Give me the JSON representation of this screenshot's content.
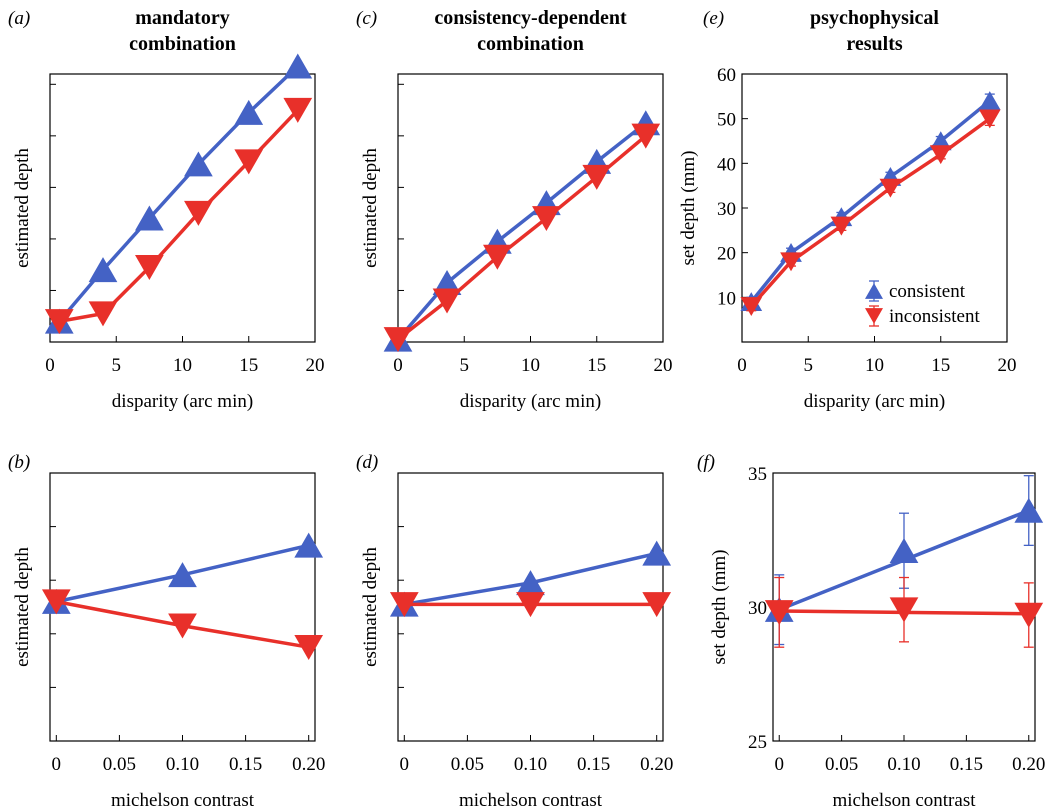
{
  "colors": {
    "consistent": "#4462C5",
    "inconsistent": "#E8302A"
  },
  "legend": {
    "consistent": "consistent",
    "inconsistent": "inconsistent"
  },
  "chart_data": [
    {
      "panel": "(a)",
      "type": "line",
      "title": [
        "mandatory",
        "combination"
      ],
      "xlabel": "disparity (arc min)",
      "ylabel": "estimated depth",
      "xlim": [
        0,
        20
      ],
      "ylim": [
        0,
        52
      ],
      "xticks": [
        "0",
        "5",
        "10",
        "15",
        "20"
      ],
      "xtick_values": [
        0,
        5,
        10,
        15,
        20
      ],
      "yticks": [],
      "ytick_values": [
        10,
        20,
        30,
        40,
        50
      ],
      "grid": false,
      "series": [
        {
          "key": "consistent",
          "marker": "up",
          "x": [
            0.7,
            4.0,
            7.5,
            11.2,
            15.0,
            18.7
          ],
          "y": [
            4,
            14,
            24,
            34.5,
            44.5,
            53.5
          ]
        },
        {
          "key": "inconsistent",
          "marker": "down",
          "x": [
            0.7,
            4.0,
            7.5,
            11.2,
            15.0,
            18.7
          ],
          "y": [
            4,
            5.5,
            14.5,
            25,
            35,
            45
          ]
        }
      ]
    },
    {
      "panel": "(c)",
      "type": "line",
      "title": [
        "consistency-dependent",
        "combination"
      ],
      "xlabel": "disparity (arc min)",
      "ylabel": "estimated depth",
      "xlim": [
        0,
        20
      ],
      "ylim": [
        0,
        52
      ],
      "xticks": [
        "0",
        "5",
        "10",
        "15",
        "20"
      ],
      "xtick_values": [
        0,
        5,
        10,
        15,
        20
      ],
      "yticks": [],
      "ytick_values": [
        10,
        20,
        30,
        40,
        50
      ],
      "grid": false,
      "series": [
        {
          "key": "consistent",
          "marker": "up",
          "x": [
            0,
            3.7,
            7.5,
            11.2,
            15.0,
            18.7
          ],
          "y": [
            0.5,
            11.5,
            19.5,
            27,
            35,
            42.5
          ]
        },
        {
          "key": "inconsistent",
          "marker": "down",
          "x": [
            0,
            3.7,
            7.5,
            11.2,
            15.0,
            18.7
          ],
          "y": [
            0.5,
            8,
            16.5,
            24,
            32,
            40
          ]
        }
      ]
    },
    {
      "panel": "(e)",
      "type": "line",
      "title": [
        "psychophysical",
        "results"
      ],
      "xlabel": "disparity (arc min)",
      "ylabel": "set depth (mm)",
      "xlim": [
        0,
        20
      ],
      "ylim": [
        0,
        60
      ],
      "xticks": [
        "0",
        "5",
        "10",
        "15",
        "20"
      ],
      "xtick_values": [
        0,
        5,
        10,
        15,
        20
      ],
      "yticks": [
        "10",
        "20",
        "30",
        "40",
        "50",
        "60"
      ],
      "ytick_values": [
        10,
        20,
        30,
        40,
        50,
        60
      ],
      "grid": false,
      "legend_position": "lower-right",
      "series": [
        {
          "key": "consistent",
          "marker": "up",
          "x": [
            0.7,
            3.7,
            7.5,
            11.2,
            15.0,
            18.7
          ],
          "y": [
            9,
            20,
            28,
            37,
            45,
            54
          ],
          "err": [
            1,
            1,
            1,
            1,
            1,
            1.5
          ]
        },
        {
          "key": "inconsistent",
          "marker": "down",
          "x": [
            0.7,
            3.7,
            7.5,
            11.2,
            15.0,
            18.7
          ],
          "y": [
            8,
            18,
            26,
            34.5,
            42,
            50
          ],
          "err": [
            1,
            1,
            1,
            1,
            1,
            1.5
          ]
        }
      ]
    },
    {
      "panel": "(b)",
      "type": "line",
      "title": [],
      "xlabel": "michelson contrast",
      "ylabel": "estimated depth",
      "xlim": [
        -0.005,
        0.205
      ],
      "ylim": [
        0,
        100
      ],
      "xticks": [
        "0",
        "0.05",
        "0.10",
        "0.15",
        "0.20"
      ],
      "xtick_values": [
        0,
        0.05,
        0.1,
        0.15,
        0.2
      ],
      "yticks": [],
      "ytick_values": [
        20,
        40,
        60,
        80
      ],
      "grid": false,
      "series": [
        {
          "key": "consistent",
          "marker": "up",
          "x": [
            0,
            0.1,
            0.2
          ],
          "y": [
            52,
            62,
            73
          ]
        },
        {
          "key": "inconsistent",
          "marker": "down",
          "x": [
            0,
            0.1,
            0.2
          ],
          "y": [
            52,
            43,
            35
          ]
        }
      ]
    },
    {
      "panel": "(d)",
      "type": "line",
      "title": [],
      "xlabel": "michelson contrast",
      "ylabel": "estimated depth",
      "xlim": [
        -0.005,
        0.205
      ],
      "ylim": [
        0,
        100
      ],
      "xticks": [
        "0",
        "0.05",
        "0.10",
        "0.15",
        "0.20"
      ],
      "xtick_values": [
        0,
        0.05,
        0.1,
        0.15,
        0.2
      ],
      "yticks": [],
      "ytick_values": [
        20,
        40,
        60,
        80
      ],
      "grid": false,
      "series": [
        {
          "key": "consistent",
          "marker": "up",
          "x": [
            0,
            0.1,
            0.2
          ],
          "y": [
            51,
            59,
            70
          ]
        },
        {
          "key": "inconsistent",
          "marker": "down",
          "x": [
            0,
            0.1,
            0.2
          ],
          "y": [
            51,
            51,
            51
          ]
        }
      ]
    },
    {
      "panel": "(f)",
      "type": "line",
      "title": [],
      "xlabel": "michelson contrast",
      "ylabel": "set depth (mm)",
      "xlim": [
        -0.005,
        0.205
      ],
      "ylim": [
        25,
        35
      ],
      "xticks": [
        "0",
        "0.05",
        "0.10",
        "0.15",
        "0.20"
      ],
      "xtick_values": [
        0,
        0.05,
        0.1,
        0.15,
        0.2
      ],
      "yticks": [
        "25",
        "30",
        "35"
      ],
      "ytick_values": [
        25,
        30,
        35
      ],
      "grid": false,
      "series": [
        {
          "key": "consistent",
          "marker": "up",
          "x": [
            0,
            0.1,
            0.2
          ],
          "y": [
            29.9,
            32.1,
            33.6
          ],
          "err": [
            1.3,
            1.4,
            1.3
          ],
          "fit_y": [
            29.9,
            33.6
          ]
        },
        {
          "key": "inconsistent",
          "marker": "down",
          "x": [
            0,
            0.1,
            0.2
          ],
          "y": [
            29.8,
            29.9,
            29.7
          ],
          "err": [
            1.3,
            1.2,
            1.2
          ],
          "fit_y": [
            29.85,
            29.75
          ]
        }
      ]
    }
  ]
}
